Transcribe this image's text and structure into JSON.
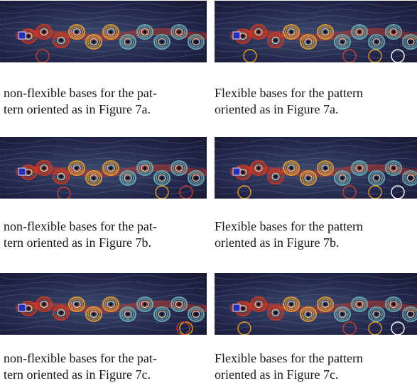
{
  "panels": [
    {
      "caption_line1": "non-flexible bases for the pat-",
      "caption_line2": "tern oriented as in Figure 7a."
    },
    {
      "caption_line1": "Flexible bases for the pattern",
      "caption_line2": "oriented as in Figure 7a."
    },
    {
      "caption_line1": "non-flexible bases for the pat-",
      "caption_line2": "tern oriented as in Figure 7b."
    },
    {
      "caption_line1": "Flexible bases for the pattern",
      "caption_line2": "oriented as in Figure 7b."
    },
    {
      "caption_line1": "non-flexible bases for the pat-",
      "caption_line2": "tern oriented as in Figure 7c."
    },
    {
      "caption_line1": "Flexible bases for the pattern",
      "caption_line2": "oriented as in Figure 7c."
    }
  ],
  "colors": {
    "background_flow": "#23264a",
    "vortex_hot": "#d8381e",
    "vortex_warm": "#e9a33a",
    "vortex_cool": "#6fb4b6",
    "basis_circle_red": "#c5402a",
    "basis_circle_orange": "#e2a02a",
    "basis_circle_white": "#ffffff"
  }
}
